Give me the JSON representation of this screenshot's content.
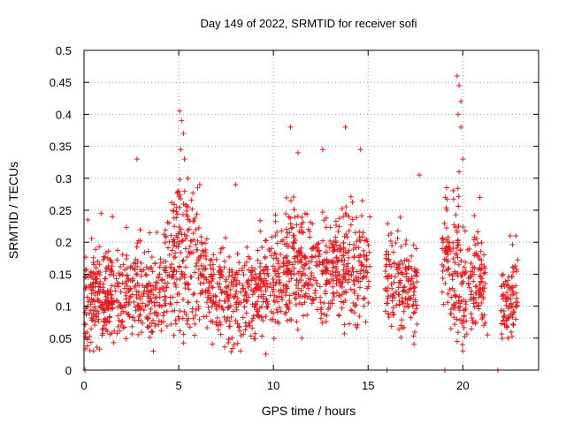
{
  "chart_data": {
    "type": "scatter",
    "title": "Day 149 of 2022, SRMTID for receiver sofi",
    "xlabel": "GPS time / hours",
    "ylabel": "SRMTID / TECUs",
    "xlim": [
      0,
      24
    ],
    "ylim": [
      0,
      0.5
    ],
    "xticks": [
      0,
      5,
      10,
      15,
      20
    ],
    "yticks": [
      0,
      0.05,
      0.1,
      0.15,
      0.2,
      0.25,
      0.3,
      0.35,
      0.4,
      0.45,
      0.5
    ],
    "xtick_labels": [
      "0",
      "5",
      "10",
      "15",
      "20"
    ],
    "ytick_labels": [
      "0",
      "0.05",
      "0.1",
      "0.15",
      "0.2",
      "0.25",
      "0.3",
      "0.35",
      "0.4",
      "0.45",
      "0.5"
    ],
    "grid": true,
    "marker": "plus",
    "color": "#e41a1c",
    "data_gaps_hours": [
      [
        15.1,
        15.9
      ],
      [
        17.6,
        18.9
      ],
      [
        21.2,
        22.0
      ]
    ],
    "envelope": [
      {
        "x": 0.2,
        "y_mid": 0.11,
        "y_spread": 0.05
      },
      {
        "x": 2.0,
        "y_mid": 0.12,
        "y_spread": 0.05
      },
      {
        "x": 4.0,
        "y_mid": 0.12,
        "y_spread": 0.05
      },
      {
        "x": 5.2,
        "y_mid": 0.2,
        "y_spread": 0.09
      },
      {
        "x": 6.5,
        "y_mid": 0.14,
        "y_spread": 0.05
      },
      {
        "x": 8.0,
        "y_mid": 0.11,
        "y_spread": 0.05
      },
      {
        "x": 9.5,
        "y_mid": 0.13,
        "y_spread": 0.05
      },
      {
        "x": 11.0,
        "y_mid": 0.17,
        "y_spread": 0.06
      },
      {
        "x": 12.5,
        "y_mid": 0.15,
        "y_spread": 0.05
      },
      {
        "x": 14.0,
        "y_mid": 0.17,
        "y_spread": 0.06
      },
      {
        "x": 15.0,
        "y_mid": 0.15,
        "y_spread": 0.05
      },
      {
        "x": 16.0,
        "y_mid": 0.14,
        "y_spread": 0.05
      },
      {
        "x": 17.5,
        "y_mid": 0.13,
        "y_spread": 0.05
      },
      {
        "x": 19.0,
        "y_mid": 0.19,
        "y_spread": 0.06
      },
      {
        "x": 20.0,
        "y_mid": 0.13,
        "y_spread": 0.07
      },
      {
        "x": 21.1,
        "y_mid": 0.13,
        "y_spread": 0.05
      },
      {
        "x": 22.0,
        "y_mid": 0.1,
        "y_spread": 0.04
      },
      {
        "x": 22.8,
        "y_mid": 0.12,
        "y_spread": 0.05
      }
    ],
    "outliers": [
      {
        "x": 0.2,
        "y": 0.235
      },
      {
        "x": 0.9,
        "y": 0.245
      },
      {
        "x": 1.5,
        "y": 0.24
      },
      {
        "x": 2.8,
        "y": 0.33
      },
      {
        "x": 5.05,
        "y": 0.405
      },
      {
        "x": 5.15,
        "y": 0.39
      },
      {
        "x": 5.25,
        "y": 0.37
      },
      {
        "x": 5.1,
        "y": 0.345
      },
      {
        "x": 5.3,
        "y": 0.33
      },
      {
        "x": 6.0,
        "y": 0.285
      },
      {
        "x": 8.0,
        "y": 0.29
      },
      {
        "x": 10.9,
        "y": 0.38
      },
      {
        "x": 11.3,
        "y": 0.34
      },
      {
        "x": 12.6,
        "y": 0.345
      },
      {
        "x": 13.8,
        "y": 0.38
      },
      {
        "x": 14.6,
        "y": 0.345
      },
      {
        "x": 17.7,
        "y": 0.305
      },
      {
        "x": 19.7,
        "y": 0.46
      },
      {
        "x": 19.8,
        "y": 0.445
      },
      {
        "x": 19.9,
        "y": 0.42
      },
      {
        "x": 19.75,
        "y": 0.4
      },
      {
        "x": 19.9,
        "y": 0.38
      },
      {
        "x": 20.0,
        "y": 0.33
      },
      {
        "x": 19.8,
        "y": 0.31
      },
      {
        "x": 20.9,
        "y": 0.27
      },
      {
        "x": 22.5,
        "y": 0.21
      },
      {
        "x": 22.8,
        "y": 0.21
      },
      {
        "x": 9.6,
        "y": 0.025
      },
      {
        "x": 0.5,
        "y": 0.03
      },
      {
        "x": 11.5,
        "y": 0.05
      },
      {
        "x": 20.0,
        "y": 0.03
      },
      {
        "x": 21.3,
        "y": 0.055
      }
    ],
    "baseline_points": [
      {
        "x": 0.05,
        "y": 0
      },
      {
        "x": 16.0,
        "y": 0
      },
      {
        "x": 19.05,
        "y": 0
      },
      {
        "x": 21.85,
        "y": 0
      }
    ]
  }
}
